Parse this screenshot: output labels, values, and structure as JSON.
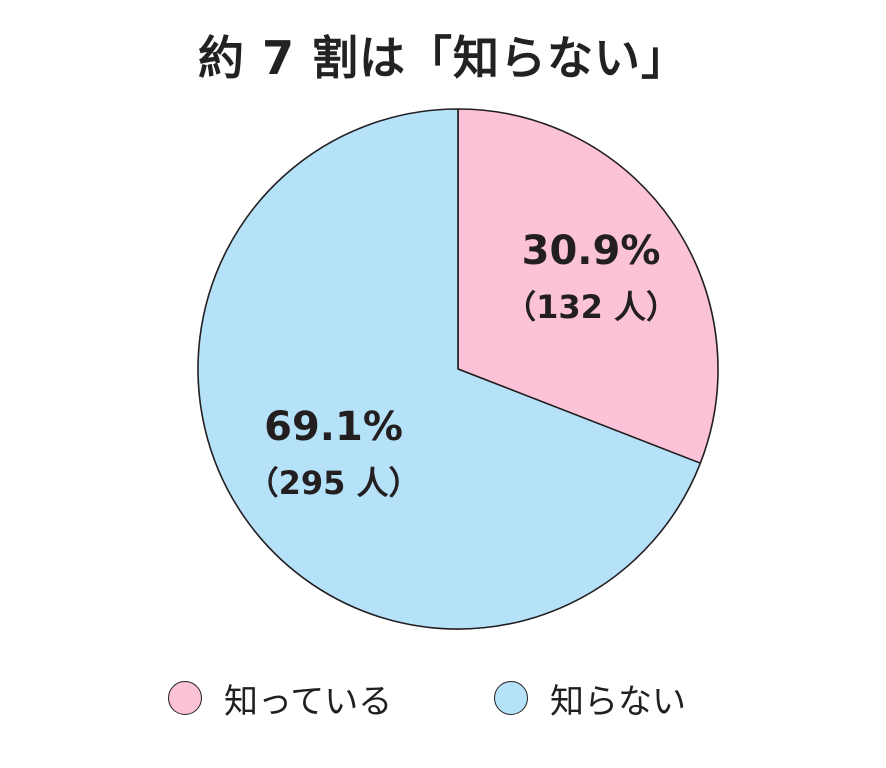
{
  "chart_data": {
    "type": "pie",
    "title": "約 7 割は「知らない」",
    "slices": [
      {
        "label": "知っている",
        "value": 30.9,
        "percent_label": "30.9%",
        "count_label": "（132 人）",
        "color": "#fcc2d8"
      },
      {
        "label": "知らない",
        "value": 69.1,
        "percent_label": "69.1%",
        "count_label": "（295 人）",
        "color": "#b5e2f8"
      }
    ],
    "start": "12 o'clock",
    "direction": "clockwise",
    "legend_placement": "bottom"
  }
}
